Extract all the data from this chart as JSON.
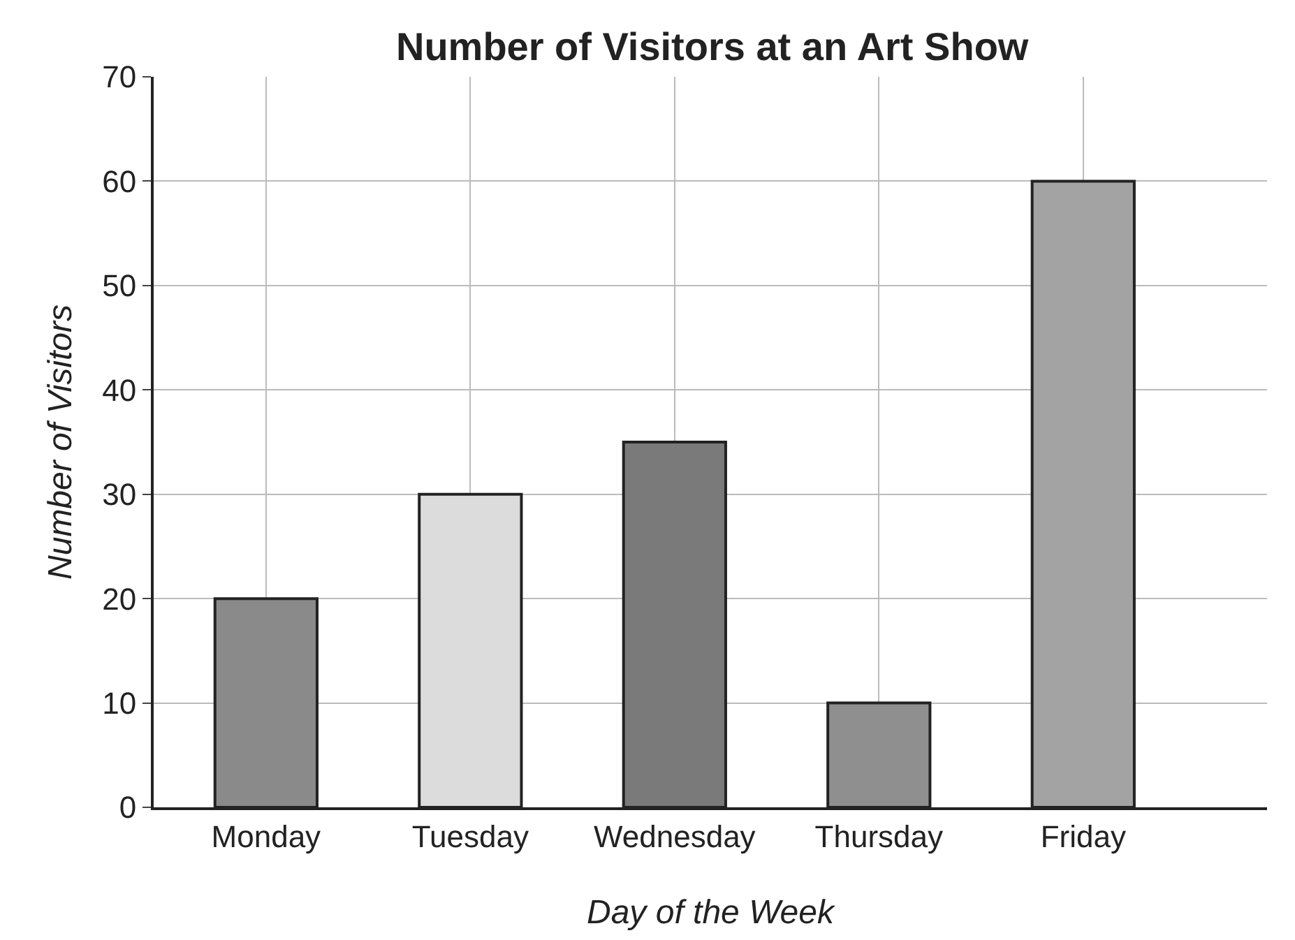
{
  "chart_data": {
    "type": "bar",
    "title": "Number of Visitors at an Art Show",
    "xlabel": "Day of the Week",
    "ylabel": "Number of Visitors",
    "categories": [
      "Monday",
      "Tuesday",
      "Wednesday",
      "Thursday",
      "Friday"
    ],
    "values": [
      20,
      30,
      35,
      10,
      60
    ],
    "colors": [
      "#8a8a8a",
      "#dcdcdc",
      "#7a7a7a",
      "#8f8f8f",
      "#a3a3a3"
    ],
    "ylim": [
      0,
      70
    ],
    "yticks": [
      0,
      10,
      20,
      30,
      40,
      50,
      60,
      70
    ],
    "grid": true
  }
}
